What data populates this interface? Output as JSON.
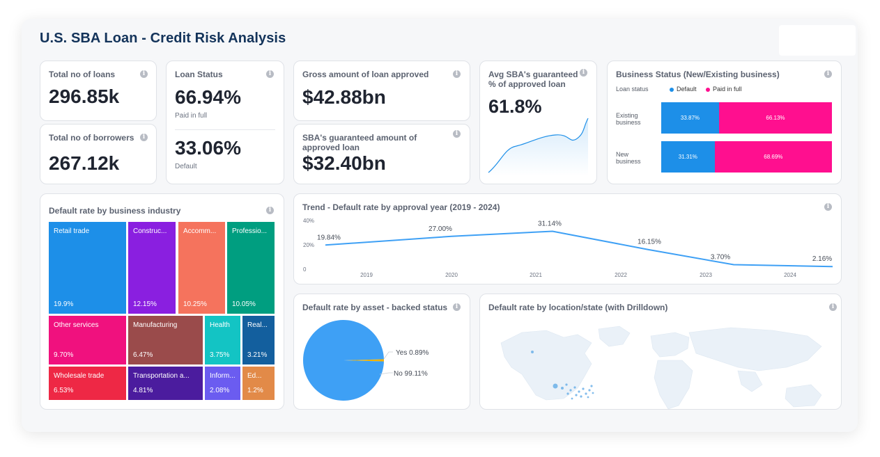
{
  "header": {
    "title": "U.S. SBA Loan - Credit Risk Analysis"
  },
  "colors": {
    "accent": "#1d8fe8",
    "pink": "#ff0f8f",
    "title": "#13335a"
  },
  "kpis": {
    "total_loans": {
      "label": "Total no of loans",
      "value": "296.85k"
    },
    "total_borrowers": {
      "label": "Total no of borrowers",
      "value": "267.12k"
    },
    "loan_status": {
      "label": "Loan Status",
      "paid_value": "66.94%",
      "paid_label": "Paid in full",
      "default_value": "33.06%",
      "default_label": "Default"
    },
    "gross_amount": {
      "label": "Gross amount of loan approved",
      "value": "$42.88bn"
    },
    "sba_amount": {
      "label": "SBA's guaranteed amount of approved loan",
      "value": "$32.40bn"
    },
    "avg_sba": {
      "label": "Avg SBA's guaranteed % of approved loan",
      "value": "61.8%"
    }
  },
  "business_status": {
    "title": "Business Status (New/Existing business)",
    "legend_title": "Loan status",
    "legend": [
      "Default",
      "Paid in full"
    ],
    "rows": [
      {
        "label_line1": "Existing",
        "label_line2": "business",
        "default": 33.87,
        "paid": 66.13,
        "default_label": "33.87%",
        "paid_label": "66.13%"
      },
      {
        "label_line1": "New",
        "label_line2": "business",
        "default": 31.31,
        "paid": 68.69,
        "default_label": "31.31%",
        "paid_label": "68.69%"
      }
    ]
  },
  "industry": {
    "title": "Default rate by business industry",
    "items": [
      {
        "label": "Retail trade",
        "pct": "19.9%",
        "color": "#1d8fe8"
      },
      {
        "label": "Construc...",
        "pct": "12.15%",
        "color": "#8a1fe0"
      },
      {
        "label": "Accomm...",
        "pct": "10.25%",
        "color": "#f5735d"
      },
      {
        "label": "Professio...",
        "pct": "10.05%",
        "color": "#009e80"
      },
      {
        "label": "Other services",
        "pct": "9.70%",
        "color": "#f0117e"
      },
      {
        "label": "Manufacturing",
        "pct": "6.47%",
        "color": "#9a4b4b"
      },
      {
        "label": "Health",
        "pct": "3.75%",
        "color": "#13c4c4"
      },
      {
        "label": "Real...",
        "pct": "3.21%",
        "color": "#135f9e"
      },
      {
        "label": "Wholesale trade",
        "pct": "6.53%",
        "color": "#ee2845"
      },
      {
        "label": "Transportation a...",
        "pct": "4.81%",
        "color": "#4b1c9e"
      },
      {
        "label": "Inform...",
        "pct": "2.08%",
        "color": "#6b5cf0"
      },
      {
        "label": "Ed...",
        "pct": "1.2%",
        "color": "#e28a48"
      }
    ]
  },
  "trend": {
    "title": "Trend - Default rate by approval year (2019 - 2024)",
    "yticks": [
      "40%",
      "20%",
      "0"
    ]
  },
  "asset": {
    "title": "Default rate by asset - backed status",
    "yes_label": "Yes 0.89%",
    "no_label": "No 99.11%"
  },
  "map": {
    "title": "Default rate by location/state (with Drilldown)"
  },
  "chart_data": [
    {
      "type": "line",
      "x": [
        "2019",
        "2020",
        "2021",
        "2022",
        "2023",
        "2024"
      ],
      "values": [
        19.84,
        27.0,
        31.14,
        16.15,
        3.7,
        2.16
      ],
      "data_labels": [
        "19.84%",
        "27.00%",
        "31.14%",
        "16.15%",
        "3.70%",
        "2.16%"
      ],
      "ylim": [
        0,
        40
      ]
    },
    {
      "type": "pie",
      "categories": [
        "Yes",
        "No"
      ],
      "values": [
        0.89,
        99.11
      ],
      "colors": [
        "#f2b200",
        "#3ea0f5"
      ]
    },
    {
      "type": "bar",
      "categories": [
        "Existing business",
        "New business"
      ],
      "series": [
        {
          "name": "Default",
          "values": [
            33.87,
            31.31
          ]
        },
        {
          "name": "Paid in full",
          "values": [
            66.13,
            68.69
          ]
        }
      ]
    }
  ]
}
